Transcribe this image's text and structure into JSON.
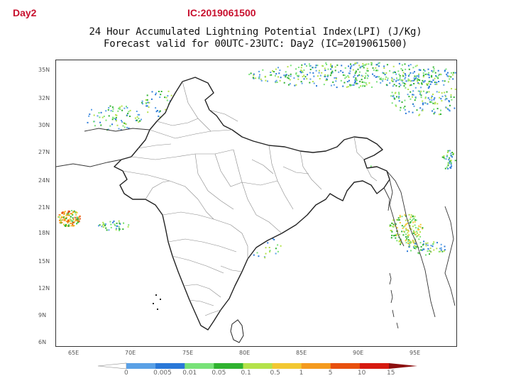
{
  "header": {
    "day_label": "Day2",
    "ic_label": "IC:2019061500"
  },
  "map": {
    "title_line_1": "24 Hour Accumulated Lightning Potential Index(LPI) (J/Kg)",
    "title_line_2": "Forecast valid for 00UTC-23UTC: Day2 (IC=2019061500)",
    "lat_labels": [
      "35N",
      "32N",
      "30N",
      "27N",
      "24N",
      "21N",
      "18N",
      "15N",
      "12N",
      "9N",
      "6N"
    ],
    "lon_labels": [
      "65E",
      "70E",
      "75E",
      "80E",
      "85E",
      "90E",
      "95E"
    ],
    "land_color": "#ffffff",
    "boundary_color": "#222222",
    "district_color": "#888888"
  },
  "colorbar": {
    "labels": [
      "0",
      "0.005",
      "0.01",
      "0.05",
      "0.1",
      "0.5",
      "1",
      "5",
      "10",
      "15"
    ],
    "colors": [
      "#ffffff",
      "#5aa0e6",
      "#2a78d8",
      "#78e278",
      "#2fb22f",
      "#b4e24a",
      "#f2c832",
      "#f49a1e",
      "#e8500e",
      "#d61a10",
      "#8c1010"
    ]
  }
}
